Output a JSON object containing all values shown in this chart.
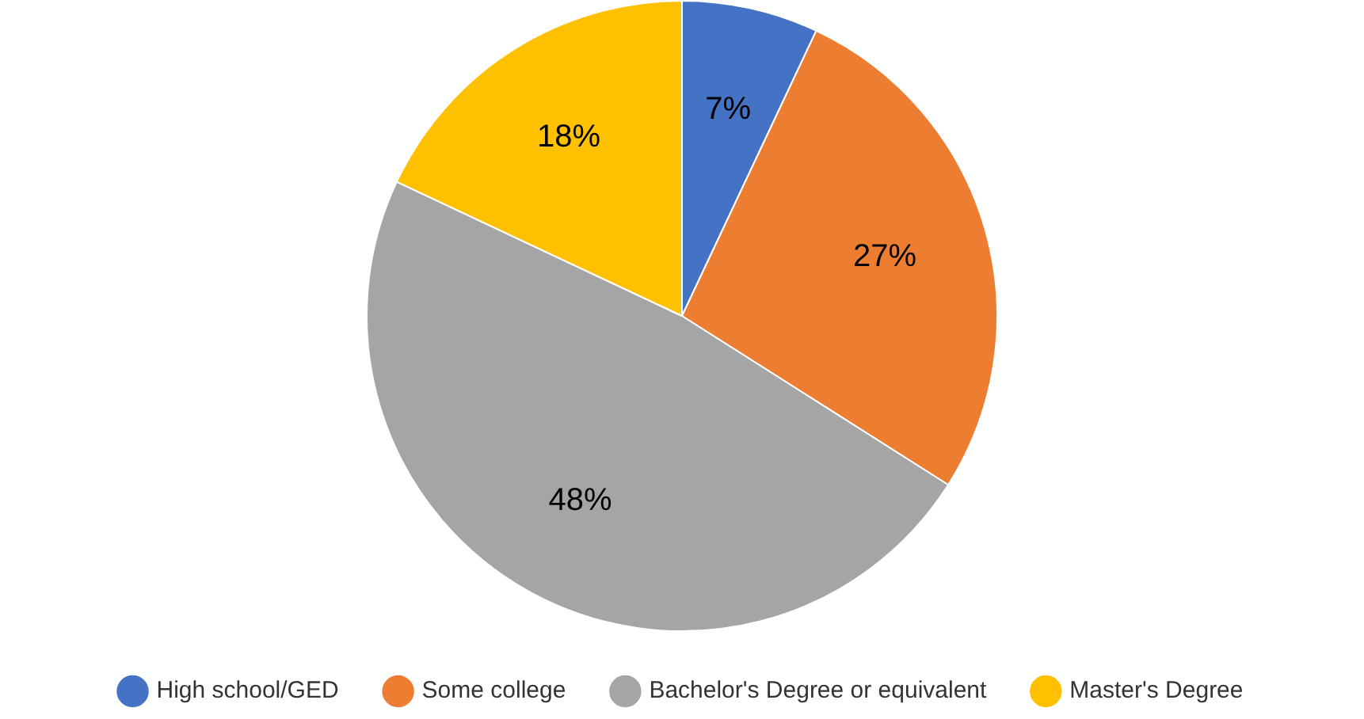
{
  "chart_data": {
    "type": "pie",
    "categories": [
      "High school/GED",
      "Some college",
      "Bachelor's Degree or equivalent",
      "Master's Degree"
    ],
    "values": [
      7,
      27,
      48,
      18
    ],
    "colors": [
      "#4472c4",
      "#ed7d31",
      "#a5a5a5",
      "#ffc000"
    ],
    "value_labels": [
      "7%",
      "27%",
      "48%",
      "18%"
    ],
    "legend": "bottom"
  }
}
